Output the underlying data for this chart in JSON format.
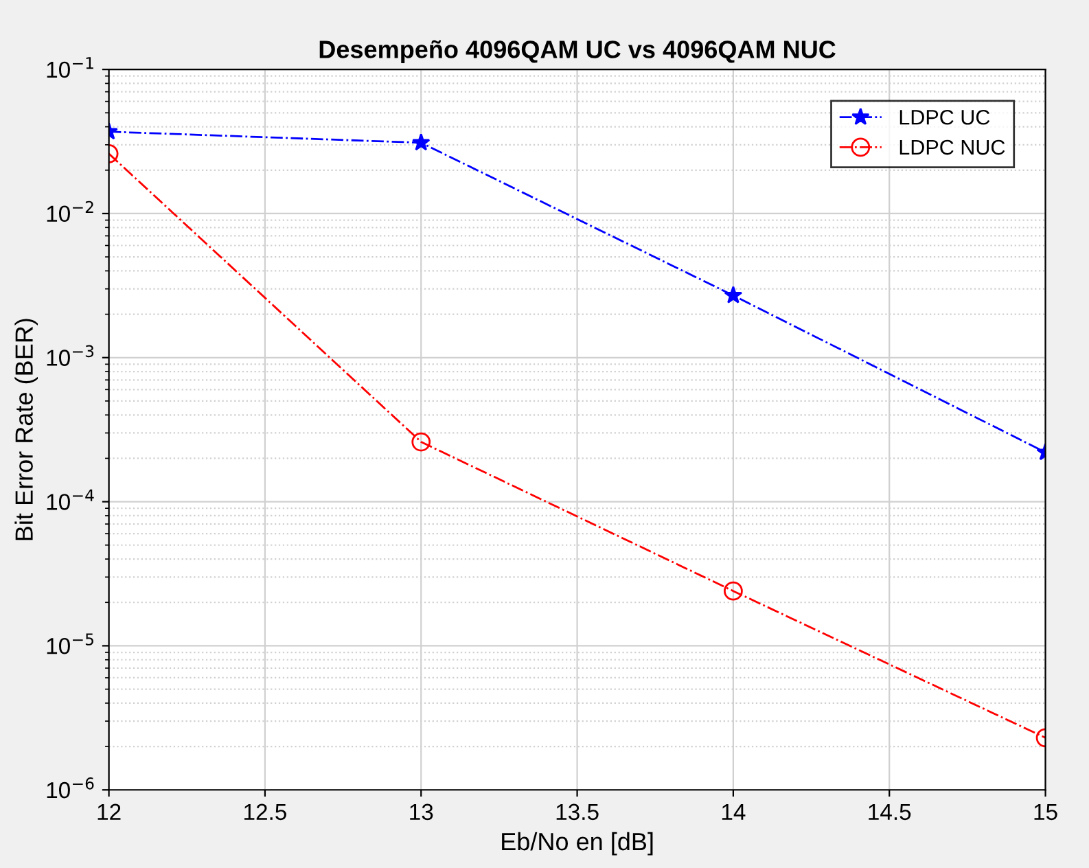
{
  "chart_data": {
    "type": "line",
    "title": "Desempeño 4096QAM UC vs 4096QAM NUC",
    "xlabel": "Eb/No en [dB]",
    "ylabel": "Bit Error Rate (BER)",
    "x": [
      12,
      13,
      14,
      15
    ],
    "series": [
      {
        "name": "LDPC UC",
        "color": "#0000ff",
        "values": [
          0.037,
          0.031,
          0.0027,
          0.00022
        ],
        "marker": "star",
        "line_style": "dashed"
      },
      {
        "name": "LDPC NUC",
        "color": "#ff0000",
        "values": [
          0.026,
          0.00026,
          2.4e-05,
          2.3e-06
        ],
        "marker": "circle",
        "line_style": "dashed"
      }
    ],
    "log": "y",
    "xlim": [
      12,
      15
    ],
    "xticks": [
      12,
      12.5,
      13,
      13.5,
      14,
      14.5,
      15
    ],
    "ylim": [
      1e-06,
      0.1
    ],
    "yticks": [
      {
        "value": 1e-06,
        "label": "10$^{−6}$"
      },
      {
        "value": 1e-05,
        "label": "10$^{−5}$"
      },
      {
        "value": 0.0001,
        "label": "10$^{−4}$"
      },
      {
        "value": 0.001,
        "label": "10$^{−3}$"
      },
      {
        "value": 0.01,
        "label": "10$^{−2}$"
      },
      {
        "value": 0.1,
        "label": "10$^{−1}$"
      }
    ],
    "grid": true,
    "legend": "top right"
  }
}
